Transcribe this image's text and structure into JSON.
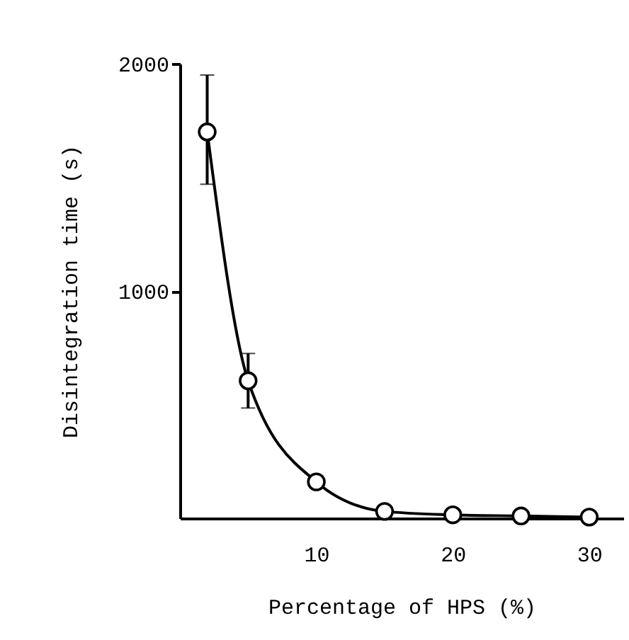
{
  "chart_data": {
    "type": "line",
    "xlabel": "Percentage of HPS  (%)",
    "ylabel": "Disintegration time  (s)",
    "x": [
      2,
      5,
      10,
      15,
      20,
      25,
      30
    ],
    "series": [
      {
        "color": "#000000",
        "values": [
          1700,
          605,
          160,
          30,
          15,
          10,
          5
        ],
        "errors": [
          [
            1470,
            1950
          ],
          [
            485,
            725
          ],
          null,
          null,
          null,
          null,
          null
        ]
      }
    ],
    "xlim": [
      0,
      32.5
    ],
    "ylim": [
      0,
      2000
    ],
    "xticks": [
      10,
      20,
      30
    ],
    "yticks": [
      1000,
      2000
    ],
    "grid": false,
    "marker": "circle",
    "line_style": "solid"
  }
}
